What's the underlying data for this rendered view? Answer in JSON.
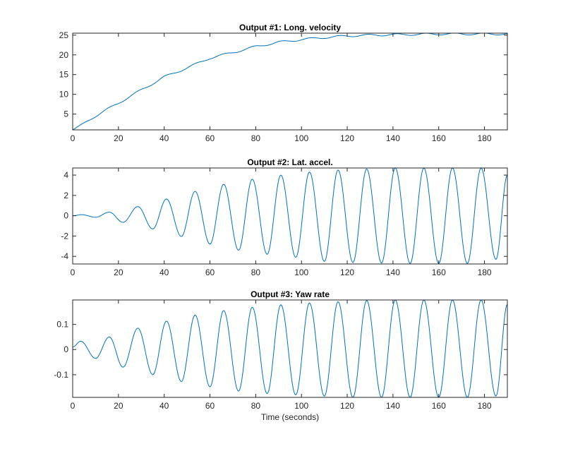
{
  "chart_data": [
    {
      "type": "line",
      "title": "Output #1: Long. velocity",
      "xlabel": "",
      "ylabel": "",
      "xlim": [
        0,
        190
      ],
      "ylim": [
        1,
        25.5
      ],
      "xticks": [
        0,
        20,
        40,
        60,
        80,
        100,
        120,
        140,
        160,
        180
      ],
      "yticks": [
        5,
        10,
        15,
        20,
        25
      ],
      "ytick_labels": [
        "5",
        "10",
        "15",
        "20",
        "25"
      ],
      "color": "#0072BD",
      "mode": "trend",
      "ripple": {
        "amplitude": 0.25,
        "period": 12.6
      },
      "x": [
        0,
        10,
        20,
        30,
        40,
        50,
        60,
        70,
        80,
        90,
        100,
        110,
        120,
        130,
        140,
        150,
        160,
        170,
        180,
        190
      ],
      "y": [
        1.0,
        4.5,
        7.8,
        11.1,
        14.4,
        16.7,
        19.2,
        20.6,
        22.1,
        23.2,
        23.9,
        24.4,
        24.8,
        25.0,
        25.1,
        25.2,
        25.3,
        25.3,
        25.3,
        25.3
      ]
    },
    {
      "type": "line",
      "title": "Output #2: Lat. accel.",
      "xlabel": "",
      "ylabel": "",
      "xlim": [
        0,
        190
      ],
      "ylim": [
        -4.75,
        4.7
      ],
      "xticks": [
        0,
        20,
        40,
        60,
        80,
        100,
        120,
        140,
        160,
        180
      ],
      "yticks": [
        -4,
        -2,
        0,
        2,
        4
      ],
      "ytick_labels": [
        "-4",
        "-2",
        "0",
        "2",
        "4"
      ],
      "color": "#0072BD",
      "mode": "extrema",
      "x": [
        0,
        4,
        10,
        16,
        22,
        28.5,
        35,
        41,
        47.5,
        53.5,
        60,
        66,
        72.5,
        78.5,
        85,
        91,
        97.5,
        103.5,
        110,
        116,
        122.5,
        128.5,
        135,
        141,
        147.5,
        153.5,
        160,
        166,
        172.5,
        178.5,
        185,
        190
      ],
      "y": [
        0,
        0.1,
        -0.15,
        0.35,
        -0.65,
        0.9,
        -1.3,
        1.65,
        -2.05,
        2.4,
        -2.8,
        3.1,
        -3.4,
        3.6,
        -3.8,
        4.0,
        -4.1,
        4.3,
        -4.5,
        4.5,
        -4.6,
        4.6,
        -4.65,
        4.7,
        -4.7,
        4.7,
        -4.7,
        4.7,
        -4.7,
        4.7,
        -4.3,
        4.0
      ]
    },
    {
      "type": "line",
      "title": "Output #3: Yaw rate",
      "xlabel": "Time (seconds)",
      "ylabel": "",
      "xlim": [
        0,
        190
      ],
      "ylim": [
        -0.19,
        0.197
      ],
      "xticks": [
        0,
        20,
        40,
        60,
        80,
        100,
        120,
        140,
        160,
        180
      ],
      "yticks": [
        -0.1,
        0,
        0.1
      ],
      "ytick_labels": [
        "-0.1",
        "0",
        "0.1"
      ],
      "color": "#0072BD",
      "mode": "extrema",
      "x": [
        0,
        3.5,
        10,
        16,
        22,
        28.5,
        35,
        41,
        47.5,
        53.5,
        60,
        66,
        72.5,
        78.5,
        85,
        91,
        97.5,
        103.5,
        110,
        116,
        122.5,
        128.5,
        135,
        141,
        147.5,
        153.5,
        160,
        166,
        172.5,
        178.5,
        185,
        190
      ],
      "y": [
        0.01,
        0.033,
        -0.035,
        0.05,
        -0.07,
        0.085,
        -0.1,
        0.113,
        -0.127,
        0.137,
        -0.148,
        0.155,
        -0.165,
        0.168,
        -0.175,
        0.178,
        -0.18,
        0.185,
        -0.185,
        0.19,
        -0.19,
        0.195,
        -0.19,
        0.197,
        -0.19,
        0.197,
        -0.19,
        0.197,
        -0.19,
        0.197,
        -0.185,
        0.18
      ]
    }
  ]
}
